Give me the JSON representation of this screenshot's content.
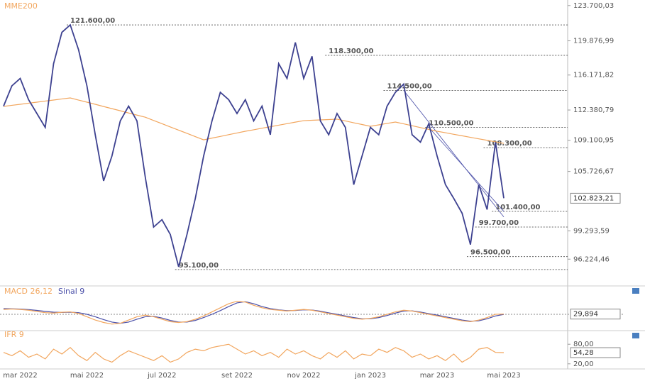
{
  "chart_data": [
    {
      "type": "line",
      "categories": [
        null,
        null,
        "mar 2022",
        null,
        null,
        null,
        null,
        null,
        null,
        null,
        "mai 2022",
        null,
        null,
        null,
        null,
        null,
        null,
        null,
        null,
        "jul 2022",
        null,
        null,
        null,
        null,
        null,
        null,
        null,
        null,
        "set 2022",
        null,
        null,
        null,
        null,
        null,
        null,
        null,
        "nov 2022",
        null,
        null,
        null,
        null,
        null,
        null,
        null,
        "jan 2023",
        null,
        null,
        null,
        null,
        null,
        null,
        null,
        "mar 2023",
        null,
        null,
        null,
        null,
        null,
        null,
        null,
        "mai 2023"
      ],
      "series": [
        {
          "color": "#3d4190",
          "values": [
            112800,
            115000,
            115800,
            113500,
            112000,
            110500,
            117400,
            120800,
            121600,
            118900,
            115000,
            109700,
            104700,
            107400,
            111200,
            112800,
            111200,
            105100,
            99700,
            100500,
            98900,
            95400,
            98900,
            102800,
            107400,
            111200,
            114300,
            113500,
            112000,
            113500,
            111200,
            112800,
            109700,
            117400,
            115800,
            119700,
            115800,
            118200,
            111200,
            109700,
            112000,
            110500,
            104300,
            107400,
            110500,
            109700,
            112800,
            114300,
            115200,
            109700,
            108900,
            110900,
            107400,
            104300,
            102800,
            101200,
            97800,
            104300,
            101600,
            108900,
            102823.21
          ]
        },
        {
          "name": "MME200",
          "color": "#f2a65e",
          "values": [
            112770,
            112890,
            113000,
            113120,
            113230,
            113350,
            113460,
            113580,
            113690,
            113460,
            113230,
            113000,
            112760,
            112530,
            112300,
            112060,
            111830,
            111600,
            111250,
            110900,
            110550,
            110200,
            109850,
            109500,
            109150,
            109340,
            109520,
            109710,
            109890,
            110080,
            110240,
            110410,
            110570,
            110740,
            110900,
            111070,
            111230,
            111270,
            111310,
            111350,
            111390,
            111200,
            111000,
            110810,
            110620,
            110770,
            110930,
            111080,
            110880,
            110680,
            110480,
            110280,
            110080,
            109920,
            109750,
            109590,
            109420,
            109260,
            109100,
            108930,
            108770
          ]
        }
      ],
      "ylim": [
        93400,
        124300
      ],
      "yticks": [
        {
          "value": 123700.03,
          "label": "123.700,03"
        },
        {
          "value": 119876.99,
          "label": "119.876,99"
        },
        {
          "value": 116171.82,
          "label": "116.171,82"
        },
        {
          "value": 112380.79,
          "label": "112.380,79"
        },
        {
          "value": 109100.95,
          "label": "109.100,95"
        },
        {
          "value": 105726.67,
          "label": "105.726,67"
        },
        {
          "value": 99293.59,
          "label": "99.293,59"
        },
        {
          "value": 96224.46,
          "label": "96.224,46"
        }
      ],
      "last_value": {
        "value": 102823.21,
        "label": "102.823,21"
      },
      "levels": [
        {
          "value": 121600,
          "label": "121.600,00",
          "start": 8
        },
        {
          "value": 118300,
          "label": "118.300,00",
          "start": 39
        },
        {
          "value": 114500,
          "label": "114.500,00",
          "start": 46
        },
        {
          "value": 110500,
          "label": "110.500,00",
          "start": 51
        },
        {
          "value": 108300,
          "label": "108.300,00",
          "start": 58
        },
        {
          "value": 101400,
          "label": "101.400,00",
          "start": 59
        },
        {
          "value": 99700,
          "label": "99.700,00",
          "start": 57
        },
        {
          "value": 96500,
          "label": "96.500,00",
          "start": 56
        },
        {
          "value": 95100,
          "label": "95.100,00",
          "start": 21
        }
      ],
      "trendlines": [
        {
          "from": [
            48,
            114500
          ],
          "to": [
            60,
            100800
          ]
        },
        {
          "from": [
            51,
            110500
          ],
          "to": [
            60,
            101400
          ]
        }
      ]
    },
    {
      "type": "line",
      "series": [
        {
          "name": "MACD 26,12",
          "color": "#f2a65e",
          "values": [
            600,
            650,
            600,
            500,
            350,
            200,
            150,
            250,
            300,
            100,
            -300,
            -700,
            -1000,
            -1200,
            -1100,
            -700,
            -300,
            -100,
            -300,
            -600,
            -900,
            -1000,
            -900,
            -600,
            -200,
            300,
            800,
            1300,
            1600,
            1500,
            1100,
            800,
            600,
            500,
            400,
            500,
            600,
            500,
            300,
            100,
            -100,
            -300,
            -500,
            -600,
            -500,
            -300,
            0,
            300,
            500,
            400,
            200,
            0,
            -200,
            -400,
            -600,
            -800,
            -900,
            -700,
            -400,
            0,
            29.894
          ]
        },
        {
          "name": "Sinal 9",
          "color": "#4a4fa8",
          "values": [
            700,
            680,
            640,
            580,
            480,
            360,
            260,
            230,
            260,
            200,
            0,
            -300,
            -650,
            -950,
            -1100,
            -950,
            -600,
            -300,
            -250,
            -450,
            -750,
            -950,
            -950,
            -750,
            -400,
            0,
            450,
            950,
            1400,
            1550,
            1300,
            950,
            700,
            550,
            450,
            470,
            550,
            520,
            380,
            180,
            0,
            -200,
            -400,
            -550,
            -550,
            -400,
            -150,
            150,
            400,
            430,
            280,
            80,
            -100,
            -300,
            -500,
            -700,
            -850,
            -800,
            -550,
            -200,
            -10
          ]
        }
      ],
      "ylim": [
        -2000,
        2000
      ],
      "zero_line": 0,
      "last_value": {
        "value": 29.894,
        "label": "29,894"
      }
    },
    {
      "type": "line",
      "series": [
        {
          "name": "IFR 9",
          "color": "#f2a65e",
          "values": [
            55,
            45,
            60,
            40,
            50,
            35,
            65,
            50,
            70,
            45,
            30,
            55,
            35,
            25,
            45,
            60,
            50,
            40,
            30,
            45,
            25,
            35,
            55,
            65,
            60,
            70,
            75,
            80,
            65,
            50,
            60,
            45,
            55,
            40,
            65,
            50,
            60,
            45,
            35,
            55,
            40,
            60,
            35,
            50,
            45,
            65,
            55,
            70,
            60,
            40,
            50,
            35,
            45,
            30,
            50,
            25,
            40,
            65,
            70,
            55,
            54.28
          ]
        }
      ],
      "ylim": [
        0,
        100
      ],
      "yticks": [
        {
          "value": 80,
          "label": "80,00"
        },
        {
          "value": 20,
          "label": "20,00"
        }
      ],
      "last_value": {
        "value": 54.28,
        "label": "54,28"
      }
    }
  ]
}
